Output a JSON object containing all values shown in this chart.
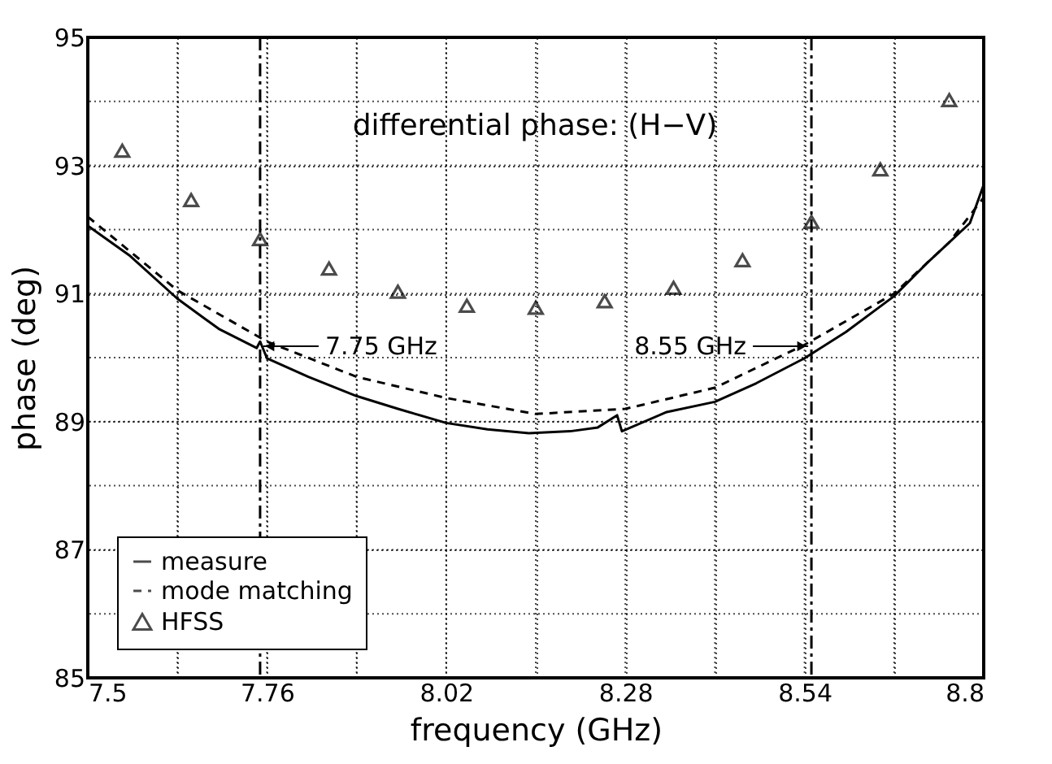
{
  "chart_data": {
    "type": "line",
    "title": "differential phase: (H−V)",
    "xlabel": "frequency (GHz)",
    "ylabel": "phase (deg)",
    "xlim": [
      7.5,
      8.8
    ],
    "ylim": [
      85,
      95
    ],
    "xticks": [
      7.5,
      {
        "value": 7.63,
        "label": null
      },
      7.76,
      {
        "value": 7.89,
        "label": null
      },
      8.02,
      {
        "value": 8.15,
        "label": null
      },
      8.28,
      {
        "value": 8.41,
        "label": null
      },
      8.54,
      {
        "value": 8.67,
        "label": null
      },
      8.8
    ],
    "yticks": [
      85,
      {
        "value": 86,
        "label": null
      },
      87,
      {
        "value": 88,
        "label": null
      },
      89,
      {
        "value": 90,
        "label": null
      },
      91,
      {
        "value": 92,
        "label": null
      },
      93,
      {
        "value": 94,
        "label": null
      },
      95
    ],
    "grid": true,
    "legend": "bottom left",
    "series": [
      {
        "name": "measure",
        "type": "line",
        "line_style": "solid",
        "color": "#000000",
        "x": [
          7.5,
          7.56,
          7.63,
          7.69,
          7.745,
          7.75,
          7.76,
          7.82,
          7.89,
          7.95,
          8.02,
          8.08,
          8.14,
          8.2,
          8.24,
          8.268,
          8.275,
          8.34,
          8.41,
          8.47,
          8.54,
          8.6,
          8.67,
          8.72,
          8.78,
          8.8
        ],
        "values": [
          92.06,
          91.6,
          90.92,
          90.45,
          90.15,
          90.25,
          89.99,
          89.7,
          89.4,
          89.2,
          88.98,
          88.88,
          88.82,
          88.85,
          88.91,
          89.1,
          88.85,
          89.15,
          89.31,
          89.6,
          89.99,
          90.4,
          90.96,
          91.5,
          92.1,
          92.7
        ]
      },
      {
        "name": "mode matching",
        "type": "line",
        "line_style": "dashed",
        "color": "#000000",
        "x": [
          7.5,
          7.63,
          7.76,
          7.89,
          8.02,
          8.15,
          8.28,
          8.41,
          8.54,
          8.67,
          8.75,
          8.79,
          8.8
        ],
        "values": [
          92.2,
          91.05,
          90.25,
          89.7,
          89.37,
          89.12,
          89.2,
          89.53,
          90.2,
          91.0,
          91.8,
          92.36,
          92.5
        ]
      },
      {
        "name": "HFSS",
        "type": "scatter",
        "marker": "triangle",
        "color": "#000000",
        "x": [
          7.55,
          7.65,
          7.75,
          7.85,
          7.95,
          8.05,
          8.15,
          8.25,
          8.35,
          8.45,
          8.55,
          8.65,
          8.75
        ],
        "values": [
          93.23,
          92.46,
          91.85,
          91.39,
          91.03,
          90.81,
          90.78,
          90.88,
          91.09,
          91.52,
          92.12,
          92.94,
          94.02
        ]
      }
    ],
    "ref_lines": [
      {
        "axis": "x",
        "value": 7.75,
        "label": "7.75 GHz",
        "line_style": "dashdot",
        "color": "#000000"
      },
      {
        "axis": "x",
        "value": 8.55,
        "label": "8.55 GHz",
        "line_style": "dashdot",
        "color": "#000000"
      }
    ]
  }
}
